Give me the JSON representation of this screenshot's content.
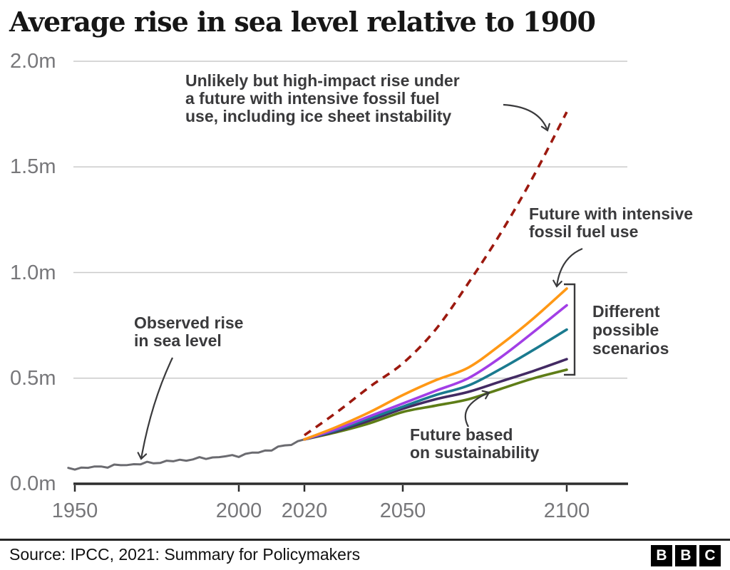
{
  "header": {
    "title": "Average rise in sea level relative to 1900"
  },
  "chart_data": {
    "type": "line",
    "title": "Average rise in sea level relative to 1900",
    "xlabel": "",
    "ylabel": "",
    "y_unit": "m",
    "ylim": [
      0,
      2.0
    ],
    "xlim": [
      1948,
      2100
    ],
    "grid": "horizontal",
    "legend_position": "none",
    "colors": {
      "grid": "#cacaca",
      "axis": "#2d2d2d",
      "tick_text": "#77777a",
      "annotation": "#3a3a3c"
    },
    "y_ticks": [
      {
        "value": 0,
        "label": "0.0m"
      },
      {
        "value": 0.5,
        "label": "0.5m"
      },
      {
        "value": 1,
        "label": "1.0m"
      },
      {
        "value": 1.5,
        "label": "1.5m"
      },
      {
        "value": 2,
        "label": "2.0m"
      }
    ],
    "x_ticks": [
      {
        "value": 1950,
        "label": "1950"
      },
      {
        "value": 2000,
        "label": "2000"
      },
      {
        "value": 2020,
        "label": "2020"
      },
      {
        "value": 2050,
        "label": "2050"
      },
      {
        "value": 2100,
        "label": "2100"
      }
    ],
    "series": [
      {
        "id": "observed",
        "label": "Observed rise in sea level",
        "color": "#6b6b70",
        "style": "solid",
        "width": 3,
        "x": [
          1948,
          1955,
          1960,
          1965,
          1970,
          1975,
          1980,
          1985,
          1990,
          1995,
          2000,
          2005,
          2010,
          2015,
          2020
        ],
        "values": [
          0.071,
          0.078,
          0.083,
          0.089,
          0.095,
          0.101,
          0.108,
          0.115,
          0.122,
          0.128,
          0.134,
          0.147,
          0.162,
          0.185,
          0.21
        ]
      },
      {
        "id": "high-impact",
        "label": "Unlikely but high-impact rise under a future with intensive fossil fuel use, including ice sheet instability",
        "color": "#9c190f",
        "style": "dashed",
        "width": 3.6,
        "x": [
          2020,
          2030,
          2040,
          2050,
          2060,
          2070,
          2080,
          2090,
          2100
        ],
        "values": [
          0.23,
          0.34,
          0.46,
          0.57,
          0.73,
          0.95,
          1.19,
          1.46,
          1.76
        ]
      },
      {
        "id": "fossil-intensive",
        "label": "Future with intensive fossil fuel use",
        "color": "#ff9815",
        "style": "solid",
        "width": 3.6,
        "x": [
          2020,
          2030,
          2040,
          2050,
          2060,
          2070,
          2080,
          2090,
          2100
        ],
        "values": [
          0.21,
          0.27,
          0.34,
          0.42,
          0.49,
          0.55,
          0.66,
          0.785,
          0.924
        ]
      },
      {
        "id": "scenario-upper-middle",
        "label": "",
        "color": "#a23ee6",
        "style": "solid",
        "width": 3.6,
        "x": [
          2020,
          2030,
          2040,
          2050,
          2060,
          2070,
          2080,
          2090,
          2100
        ],
        "values": [
          0.21,
          0.26,
          0.32,
          0.38,
          0.44,
          0.5,
          0.6,
          0.72,
          0.845
        ]
      },
      {
        "id": "scenario-middle",
        "label": "",
        "color": "#1a7a8f",
        "style": "solid",
        "width": 3.6,
        "x": [
          2020,
          2030,
          2040,
          2050,
          2060,
          2070,
          2080,
          2090,
          2100
        ],
        "values": [
          0.21,
          0.255,
          0.31,
          0.365,
          0.42,
          0.465,
          0.545,
          0.635,
          0.73
        ]
      },
      {
        "id": "scenario-lower-middle",
        "label": "",
        "color": "#432a63",
        "style": "solid",
        "width": 3.6,
        "x": [
          2020,
          2030,
          2040,
          2050,
          2060,
          2070,
          2080,
          2090,
          2100
        ],
        "values": [
          0.21,
          0.25,
          0.3,
          0.355,
          0.4,
          0.435,
          0.485,
          0.535,
          0.59
        ]
      },
      {
        "id": "sustainability",
        "label": "Future based on sustainability",
        "color": "#5e7d17",
        "style": "solid",
        "width": 3.6,
        "x": [
          2020,
          2030,
          2040,
          2050,
          2060,
          2070,
          2080,
          2090,
          2100
        ],
        "values": [
          0.21,
          0.245,
          0.287,
          0.34,
          0.37,
          0.4,
          0.45,
          0.5,
          0.54
        ]
      }
    ],
    "annotations": [
      "Unlikely but high-impact rise under a future with intensive fossil fuel use, including ice sheet instability",
      "Future with intensive fossil fuel use",
      "Observed rise in sea level",
      "Future based on sustainability",
      "Different possible scenarios"
    ]
  },
  "annotations": {
    "unlikely": {
      "text": "Unlikely but high-impact rise under\na future with intensive fossil fuel\nuse, including ice sheet instability"
    },
    "fossil": {
      "text": "Future with intensive\nfossil fuel use"
    },
    "observed": {
      "text": "Observed rise\nin sea level"
    },
    "sustain": {
      "text": "Future based\non sustainability"
    },
    "scenarios": {
      "text": "Different\npossible\nscenarios"
    }
  },
  "footer": {
    "source": "Source: IPCC, 2021: Summary for Policymakers",
    "logo_letters": [
      "B",
      "B",
      "C"
    ]
  }
}
